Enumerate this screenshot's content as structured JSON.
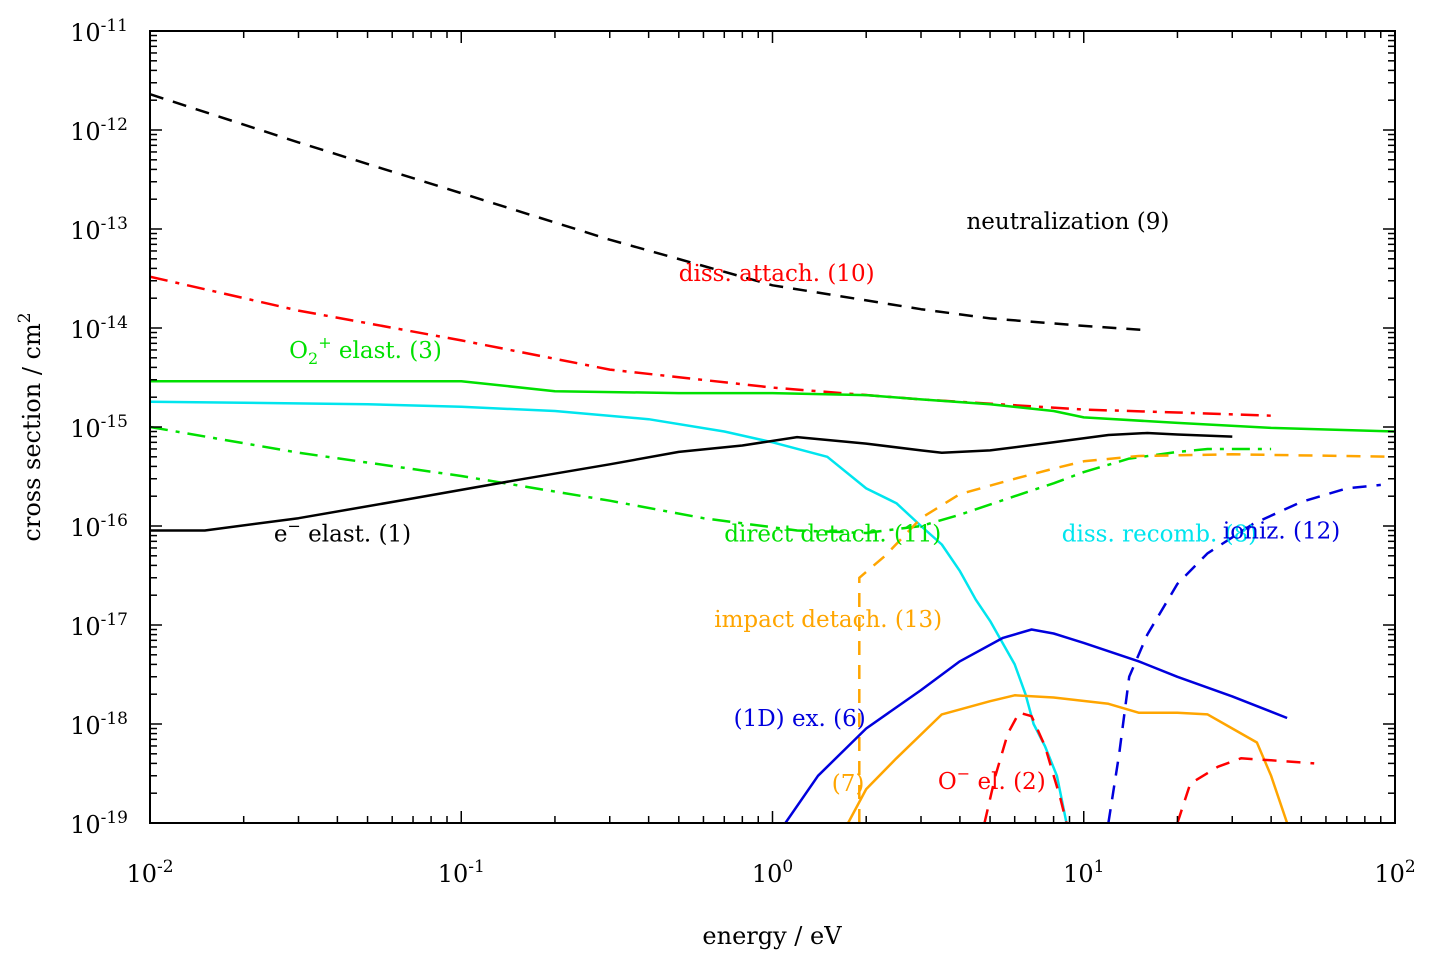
{
  "chart_data": {
    "type": "line",
    "xlabel": "energy / eV",
    "ylabel_parts": [
      "cross section / cm",
      "2"
    ],
    "xscale": "log",
    "yscale": "log",
    "xlim": [
      0.01,
      100
    ],
    "ylim": [
      1e-19,
      1e-11
    ],
    "grid": false,
    "legend": "none",
    "x_ticks": [
      {
        "base": "10",
        "exp": "-2",
        "value": 0.01
      },
      {
        "base": "10",
        "exp": "-1",
        "value": 0.1
      },
      {
        "base": "10",
        "exp": "0",
        "value": 1
      },
      {
        "base": "10",
        "exp": "1",
        "value": 10
      },
      {
        "base": "10",
        "exp": "2",
        "value": 100
      }
    ],
    "y_ticks": [
      {
        "base": "10",
        "exp": "-11",
        "value": 1e-11
      },
      {
        "base": "10",
        "exp": "-12",
        "value": 1e-12
      },
      {
        "base": "10",
        "exp": "-13",
        "value": 1e-13
      },
      {
        "base": "10",
        "exp": "-14",
        "value": 1e-14
      },
      {
        "base": "10",
        "exp": "-15",
        "value": 1e-15
      },
      {
        "base": "10",
        "exp": "-16",
        "value": 1e-16
      },
      {
        "base": "10",
        "exp": "-17",
        "value": 1e-17
      },
      {
        "base": "10",
        "exp": "-18",
        "value": 1e-18
      },
      {
        "base": "10",
        "exp": "-19",
        "value": 1e-19
      }
    ],
    "series": [
      {
        "id": "neutralization",
        "color": "#000000",
        "style": "dashed",
        "points": [
          [
            0.01,
            2.3e-12
          ],
          [
            0.03,
            7.5e-13
          ],
          [
            0.1,
            2.3e-13
          ],
          [
            0.3,
            7.8e-14
          ],
          [
            1,
            2.7e-14
          ],
          [
            3,
            1.55e-14
          ],
          [
            5,
            1.25e-14
          ],
          [
            10,
            1.05e-14
          ],
          [
            16,
            9.5e-15
          ]
        ]
      },
      {
        "id": "diss-attach",
        "color": "#ff0000",
        "style": "dashdot",
        "points": [
          [
            0.01,
            3.3e-14
          ],
          [
            0.03,
            1.5e-14
          ],
          [
            0.1,
            7.5e-15
          ],
          [
            0.3,
            3.8e-15
          ],
          [
            1,
            2.5e-15
          ],
          [
            3,
            1.9e-15
          ],
          [
            10,
            1.5e-15
          ],
          [
            20,
            1.4e-15
          ],
          [
            40,
            1.3e-15
          ]
        ]
      },
      {
        "id": "o2plus-elast",
        "color": "#00e000",
        "style": "solid",
        "points": [
          [
            0.01,
            2.9e-15
          ],
          [
            0.1,
            2.9e-15
          ],
          [
            0.2,
            2.3e-15
          ],
          [
            0.5,
            2.2e-15
          ],
          [
            1,
            2.2e-15
          ],
          [
            2,
            2.1e-15
          ],
          [
            3,
            1.9e-15
          ],
          [
            5,
            1.7e-15
          ],
          [
            8,
            1.45e-15
          ],
          [
            10,
            1.25e-15
          ],
          [
            20,
            1.1e-15
          ],
          [
            40,
            9.8e-16
          ],
          [
            100,
            9e-16
          ]
        ]
      },
      {
        "id": "diss-recomb",
        "color": "#00e5ee",
        "style": "solid",
        "points": [
          [
            0.01,
            1.8e-15
          ],
          [
            0.05,
            1.7e-15
          ],
          [
            0.1,
            1.6e-15
          ],
          [
            0.2,
            1.45e-15
          ],
          [
            0.4,
            1.2e-15
          ],
          [
            0.7,
            9e-16
          ],
          [
            1,
            7e-16
          ],
          [
            1.5,
            5e-16
          ],
          [
            2,
            2.4e-16
          ],
          [
            2.5,
            1.7e-16
          ],
          [
            3,
            1e-16
          ],
          [
            3.5,
            6.5e-17
          ],
          [
            4,
            3.5e-17
          ],
          [
            4.5,
            1.8e-17
          ],
          [
            5,
            1.1e-17
          ],
          [
            6,
            4e-18
          ],
          [
            6.5,
            2e-18
          ],
          [
            6.9,
            1e-18
          ],
          [
            7.5,
            6e-19
          ],
          [
            8.2,
            3e-19
          ],
          [
            8.8,
            1e-19
          ]
        ]
      },
      {
        "id": "direct-detach",
        "color": "#00e000",
        "style": "dashdot",
        "points": [
          [
            0.01,
            1e-15
          ],
          [
            0.03,
            5.5e-16
          ],
          [
            0.1,
            3.2e-16
          ],
          [
            0.3,
            1.8e-16
          ],
          [
            0.6,
            1.2e-16
          ],
          [
            1.2,
            9e-17
          ],
          [
            2,
            8.5e-17
          ],
          [
            3,
            1e-16
          ],
          [
            4,
            1.3e-16
          ],
          [
            6,
            2e-16
          ],
          [
            8,
            2.7e-16
          ],
          [
            10,
            3.5e-16
          ],
          [
            14,
            4.8e-16
          ],
          [
            20,
            5.6e-16
          ],
          [
            25,
            6e-16
          ],
          [
            40,
            6e-16
          ]
        ]
      },
      {
        "id": "e-elast",
        "color": "#000000",
        "style": "solid",
        "points": [
          [
            0.01,
            9e-17
          ],
          [
            0.015,
            9e-17
          ],
          [
            0.03,
            1.2e-16
          ],
          [
            0.07,
            1.9e-16
          ],
          [
            0.15,
            2.9e-16
          ],
          [
            0.3,
            4.2e-16
          ],
          [
            0.5,
            5.6e-16
          ],
          [
            0.8,
            6.5e-16
          ],
          [
            1.2,
            7.9e-16
          ],
          [
            2,
            6.8e-16
          ],
          [
            3,
            5.8e-16
          ],
          [
            3.5,
            5.5e-16
          ],
          [
            5,
            5.8e-16
          ],
          [
            8,
            7e-16
          ],
          [
            12,
            8.3e-16
          ],
          [
            16,
            8.7e-16
          ],
          [
            20,
            8.4e-16
          ],
          [
            30,
            8e-16
          ]
        ]
      },
      {
        "id": "impact-detach",
        "color": "#ffa500",
        "style": "dashed",
        "points": [
          [
            1.9,
            1e-19
          ],
          [
            1.9,
            3e-17
          ],
          [
            2.3,
            5e-17
          ],
          [
            3,
            1.2e-16
          ],
          [
            4,
            2.1e-16
          ],
          [
            6,
            3e-16
          ],
          [
            8,
            3.8e-16
          ],
          [
            10,
            4.5e-16
          ],
          [
            15,
            5.1e-16
          ],
          [
            30,
            5.3e-16
          ],
          [
            100,
            5e-16
          ]
        ]
      },
      {
        "id": "ionization",
        "color": "#0000dd",
        "style": "dashed",
        "points": [
          [
            12,
            1e-19
          ],
          [
            13,
            5e-19
          ],
          [
            14,
            3e-18
          ],
          [
            16,
            8e-18
          ],
          [
            20,
            2.6e-17
          ],
          [
            25,
            5.3e-17
          ],
          [
            35,
            1.05e-16
          ],
          [
            50,
            1.75e-16
          ],
          [
            70,
            2.4e-16
          ],
          [
            90,
            2.6e-16
          ]
        ]
      },
      {
        "id": "1d-ex",
        "color": "#0000dd",
        "style": "solid",
        "points": [
          [
            1.1,
            1e-19
          ],
          [
            1.4,
            3e-19
          ],
          [
            2,
            9e-19
          ],
          [
            3,
            2.2e-18
          ],
          [
            4,
            4.3e-18
          ],
          [
            5.5,
            7.4e-18
          ],
          [
            6.8,
            9e-18
          ],
          [
            8,
            8.2e-18
          ],
          [
            10,
            6.6e-18
          ],
          [
            15,
            4.3e-18
          ],
          [
            20,
            3e-18
          ],
          [
            30,
            1.9e-18
          ],
          [
            45,
            1.15e-18
          ]
        ]
      },
      {
        "id": "reaction-7",
        "color": "#ffa500",
        "style": "solid",
        "points": [
          [
            1.75,
            1e-19
          ],
          [
            2,
            2.2e-19
          ],
          [
            2.5,
            4.5e-19
          ],
          [
            3.5,
            1.25e-18
          ],
          [
            5,
            1.7e-18
          ],
          [
            6,
            1.95e-18
          ],
          [
            8,
            1.85e-18
          ],
          [
            12,
            1.6e-18
          ],
          [
            15,
            1.3e-18
          ],
          [
            20,
            1.3e-18
          ],
          [
            25,
            1.25e-18
          ],
          [
            30,
            9e-19
          ],
          [
            36,
            6.5e-19
          ],
          [
            40,
            3e-19
          ],
          [
            45,
            1e-19
          ]
        ]
      },
      {
        "id": "o-minus-el-low",
        "color": "#ff0000",
        "style": "dashed",
        "points": [
          [
            4.8,
            1e-19
          ],
          [
            5.2,
            3e-19
          ],
          [
            5.7,
            8e-19
          ],
          [
            6.2,
            1.3e-18
          ],
          [
            6.8,
            1.2e-18
          ],
          [
            7.5,
            6e-19
          ],
          [
            8.4,
            1.8e-19
          ],
          [
            8.8,
            1e-19
          ]
        ]
      },
      {
        "id": "o-minus-el-high",
        "color": "#ff0000",
        "style": "dashed",
        "points": [
          [
            20,
            1e-19
          ],
          [
            22,
            2.5e-19
          ],
          [
            27,
            3.7e-19
          ],
          [
            32,
            4.5e-19
          ],
          [
            40,
            4.3e-19
          ],
          [
            55,
            4e-19
          ]
        ]
      }
    ],
    "annotations": [
      {
        "id": "neutralization",
        "text": "neutralization (9)",
        "color": "#000000",
        "x": 4.2,
        "y": 1e-13
      },
      {
        "id": "diss-attach",
        "text": "diss. attach. (10)",
        "color": "#ff0000",
        "x": 0.5,
        "y": 3e-14
      },
      {
        "id": "o2plus-elast",
        "main": "O",
        "sub": "2",
        "sup": "+",
        "rest": " elast. (3)",
        "color": "#00e000",
        "x": 0.028,
        "y": 5e-15
      },
      {
        "id": "e-elast",
        "main": "e",
        "sup": "−",
        "rest": " elast. (1)",
        "color": "#000000",
        "x": 0.025,
        "y": 7e-17
      },
      {
        "id": "direct-detach",
        "text": "direct detach. (11)",
        "color": "#00e000",
        "x": 0.7,
        "y": 7e-17
      },
      {
        "id": "diss-recomb",
        "text": "diss. recomb. (8)",
        "color": "#00e5ee",
        "x": 8.5,
        "y": 7e-17
      },
      {
        "id": "ionization",
        "text": "ioniz. (12)",
        "color": "#0000dd",
        "x": 28,
        "y": 7.5e-17
      },
      {
        "id": "impact-detach",
        "text": "impact detach. (13)",
        "color": "#ffa500",
        "x": 0.65,
        "y": 9.5e-18
      },
      {
        "id": "1d-ex",
        "text": "(1D) ex. (6)",
        "color": "#0000dd",
        "x": 0.75,
        "y": 9.5e-19
      },
      {
        "id": "reaction-7",
        "text": "(7)",
        "color": "#ffa500",
        "x": 1.55,
        "y": 2.1e-19
      },
      {
        "id": "o-minus-el",
        "main": "O",
        "sup": "−",
        "rest": " el. (2)",
        "color": "#ff0000",
        "x": 3.4,
        "y": 2.2e-19
      }
    ]
  }
}
